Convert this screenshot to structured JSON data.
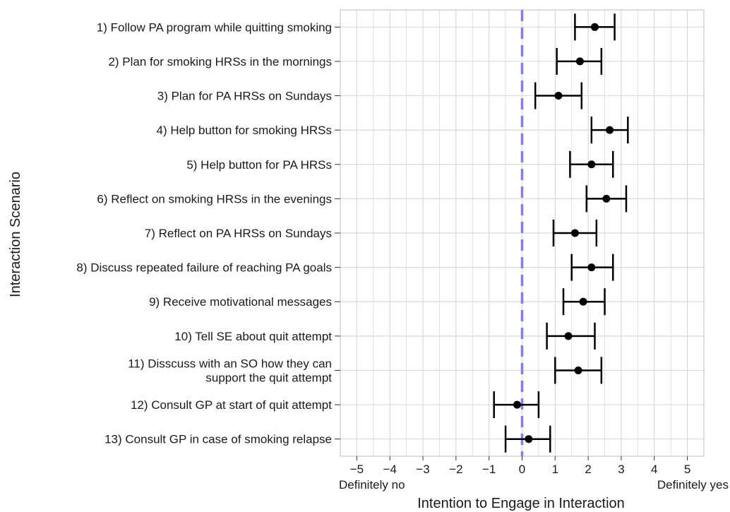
{
  "chart_data": {
    "type": "scatter",
    "subtype": "point-estimates-with-error-bars",
    "title": "",
    "xlabel": "Intention to Engage in Interaction",
    "ylabel": "Interaction Scenario",
    "xlim": [
      -5.5,
      5.5
    ],
    "xticks": [
      -5,
      -4,
      -3,
      -2,
      -1,
      0,
      1,
      2,
      3,
      4,
      5
    ],
    "xtick_labels": [
      "−5",
      "−4",
      "−3",
      "−2",
      "−1",
      "0",
      "1",
      "2",
      "3",
      "4",
      "5"
    ],
    "x_end_labels": {
      "left": "Definitely no",
      "right": "Definitely yes"
    },
    "reference_line": {
      "x": 0,
      "style": "dashed",
      "color": "#8080e6"
    },
    "grid": true,
    "colors": {
      "points": "#000000",
      "grid": "#d9d9d9",
      "frame": "#bdbdbd"
    },
    "categories": [
      [
        "1) Follow PA program while quitting smoking"
      ],
      [
        "2) Plan for smoking HRSs in the mornings"
      ],
      [
        "3) Plan for PA HRSs on Sundays"
      ],
      [
        "4) Help button for smoking HRSs"
      ],
      [
        "5) Help button for PA HRSs"
      ],
      [
        "6) Reflect on smoking HRSs in the evenings"
      ],
      [
        "7) Reflect on PA HRSs on Sundays"
      ],
      [
        "8) Discuss repeated failure of reaching PA goals"
      ],
      [
        "9) Receive motivational messages"
      ],
      [
        "10) Tell SE about quit attempt"
      ],
      [
        "11) Disscuss with an SO how they can",
        "support the quit attempt"
      ],
      [
        "12) Consult GP at start of quit attempt"
      ],
      [
        "13) Consult GP in case of smoking relapse"
      ]
    ],
    "values": [
      2.2,
      1.75,
      1.1,
      2.65,
      2.1,
      2.55,
      1.6,
      2.1,
      1.85,
      1.4,
      1.7,
      -0.15,
      0.2
    ],
    "ci_low": [
      1.6,
      1.05,
      0.4,
      2.1,
      1.45,
      1.95,
      0.95,
      1.5,
      1.25,
      0.75,
      1.0,
      -0.85,
      -0.5
    ],
    "ci_high": [
      2.8,
      2.4,
      1.8,
      3.2,
      2.75,
      3.15,
      2.25,
      2.75,
      2.5,
      2.2,
      2.4,
      0.5,
      0.85
    ]
  }
}
